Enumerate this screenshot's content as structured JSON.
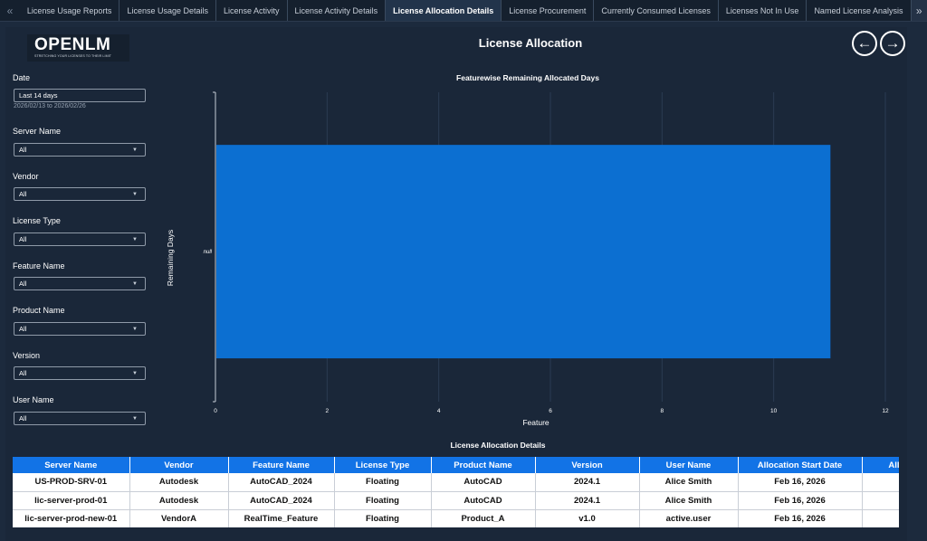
{
  "tabs": [
    {
      "label": "License Usage Reports",
      "active": false
    },
    {
      "label": "License Usage Details",
      "active": false
    },
    {
      "label": "License Activity",
      "active": false
    },
    {
      "label": "License Activity Details",
      "active": false
    },
    {
      "label": "License Allocation Details",
      "active": true
    },
    {
      "label": "License Procurement",
      "active": false
    },
    {
      "label": "Currently Consumed Licenses",
      "active": false
    },
    {
      "label": "Licenses Not In Use",
      "active": false
    },
    {
      "label": "Named License Analysis",
      "active": false
    }
  ],
  "tab_nav": {
    "prev": "«",
    "next": "»"
  },
  "logo": {
    "text": "OPENLM",
    "tagline": "STRETCHING YOUR LICENSES TO THEIR LIMIT"
  },
  "page": {
    "title": "License Allocation",
    "back_icon": "arrow-left-icon",
    "forward_icon": "arrow-right-icon"
  },
  "filters": {
    "date": {
      "label": "Date",
      "value": "Last 14 days",
      "range": "2026/02/13 to 2026/02/26"
    },
    "server_name": {
      "label": "Server Name",
      "value": "All"
    },
    "vendor": {
      "label": "Vendor",
      "value": "All"
    },
    "license_type": {
      "label": "License Type",
      "value": "All"
    },
    "feature_name": {
      "label": "Feature Name",
      "value": "All"
    },
    "product_name": {
      "label": "Product Name",
      "value": "All"
    },
    "version": {
      "label": "Version",
      "value": "All"
    },
    "user_name": {
      "label": "User Name",
      "value": "All"
    }
  },
  "colors": {
    "bar": "#0c6fd1",
    "header": "#1273e6",
    "background": "#1c2a3d"
  },
  "chart_data": {
    "type": "bar",
    "orientation": "horizontal",
    "title": "Featurewise Remaining Allocated Days",
    "xlabel": "Feature",
    "ylabel": "Remaining Days",
    "categories": [
      "null"
    ],
    "values": [
      11
    ],
    "xlim": [
      0,
      12
    ],
    "xticks": [
      0,
      2,
      4,
      6,
      8,
      10,
      12
    ],
    "grid": true
  },
  "table": {
    "title": "License Allocation Details",
    "columns": [
      "Server Name",
      "Vendor",
      "Feature Name",
      "License Type",
      "Product Name",
      "Version",
      "User Name",
      "Allocation Start Date",
      "Alloc"
    ],
    "rows": [
      [
        "US-PROD-SRV-01",
        "Autodesk",
        "AutoCAD_2024",
        "Floating",
        "AutoCAD",
        "2024.1",
        "Alice Smith",
        "Feb 16, 2026",
        ""
      ],
      [
        "lic-server-prod-01",
        "Autodesk",
        "AutoCAD_2024",
        "Floating",
        "AutoCAD",
        "2024.1",
        "Alice Smith",
        "Feb 16, 2026",
        ""
      ],
      [
        "lic-server-prod-new-01",
        "VendorA",
        "RealTime_Feature",
        "Floating",
        "Product_A",
        "v1.0",
        "active.user",
        "Feb 16, 2026",
        ""
      ]
    ]
  }
}
